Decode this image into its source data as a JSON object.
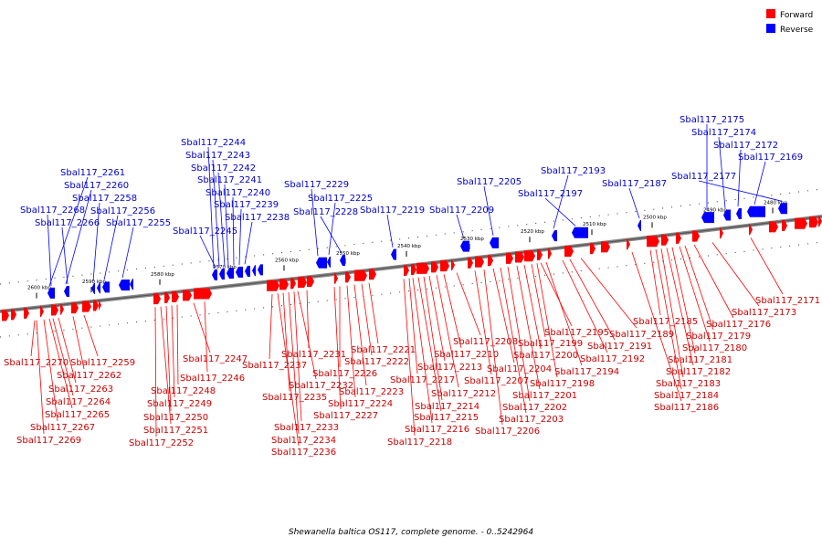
{
  "caption": "Shewanella baltica OS117, complete genome. - 0..5242964",
  "legend": {
    "forward": {
      "label": "Forward",
      "color": "#ff0000"
    },
    "reverse": {
      "label": "Reverse",
      "color": "#0000ff"
    }
  },
  "ticks": [
    "2600 kbp",
    "2590 kbp",
    "2580 kbp",
    "2570 kbp",
    "2560 kbp",
    "2550 kbp",
    "2540 kbp",
    "2530 kbp",
    "2520 kbp",
    "2510 kbp",
    "2500 kbp",
    "2490 kbp",
    "2480 kbp"
  ],
  "forward_genes": [
    "Sbal117_2270",
    "Sbal117_2269",
    "Sbal117_2267",
    "Sbal117_2265",
    "Sbal117_2264",
    "Sbal117_2263",
    "Sbal117_2262",
    "Sbal117_2259",
    "Sbal117_2252",
    "Sbal117_2251",
    "Sbal117_2250",
    "Sbal117_2249",
    "Sbal117_2248",
    "Sbal117_2247",
    "Sbal117_2246",
    "Sbal117_2237",
    "Sbal117_2236",
    "Sbal117_2235",
    "Sbal117_2234",
    "Sbal117_2233",
    "Sbal117_2232",
    "Sbal117_2231",
    "Sbal117_2227",
    "Sbal117_2226",
    "Sbal117_2224",
    "Sbal117_2223",
    "Sbal117_2222",
    "Sbal117_2221",
    "Sbal117_2218",
    "Sbal117_2217",
    "Sbal117_2216",
    "Sbal117_2215",
    "Sbal117_2214",
    "Sbal117_2213",
    "Sbal117_2212",
    "Sbal117_2210",
    "Sbal117_2208",
    "Sbal117_2207",
    "Sbal117_2206",
    "Sbal117_2204",
    "Sbal117_2203",
    "Sbal117_2202",
    "Sbal117_2201",
    "Sbal117_2200",
    "Sbal117_2199",
    "Sbal117_2198",
    "Sbal117_2195",
    "Sbal117_2194",
    "Sbal117_2192",
    "Sbal117_2191",
    "Sbal117_2189",
    "Sbal117_2186",
    "Sbal117_2185",
    "Sbal117_2184",
    "Sbal117_2183",
    "Sbal117_2182",
    "Sbal117_2181",
    "Sbal117_2180",
    "Sbal117_2179",
    "Sbal117_2176",
    "Sbal117_2173",
    "Sbal117_2171"
  ],
  "reverse_genes": [
    "Sbal117_2244",
    "Sbal117_2243",
    "Sbal117_2242",
    "Sbal117_2241",
    "Sbal117_2240",
    "Sbal117_2239",
    "Sbal117_2238",
    "Sbal117_2245",
    "Sbal117_2261",
    "Sbal117_2260",
    "Sbal117_2258",
    "Sbal117_2256",
    "Sbal117_2255",
    "Sbal117_2268",
    "Sbal117_2266",
    "Sbal117_2229",
    "Sbal117_2225",
    "Sbal117_2228",
    "Sbal117_2219",
    "Sbal117_2209",
    "Sbal117_2205",
    "Sbal117_2193",
    "Sbal117_2197",
    "Sbal117_2187",
    "Sbal117_2175",
    "Sbal117_2174",
    "Sbal117_2172",
    "Sbal117_2169",
    "Sbal117_2177"
  ]
}
